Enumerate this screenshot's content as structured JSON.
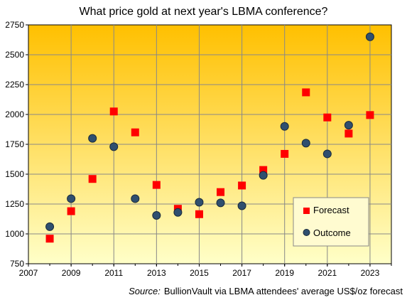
{
  "chart_data": {
    "type": "scatter",
    "title": "What price gold at next year's LBMA conference?",
    "xlabel": "",
    "ylabel": "",
    "xlim": [
      2007,
      2024
    ],
    "ylim": [
      750,
      2750
    ],
    "x_ticks": [
      "2007",
      "2009",
      "2011",
      "2013",
      "2015",
      "2017",
      "2019",
      "2021",
      "2023"
    ],
    "y_ticks": [
      "750",
      "1000",
      "1250",
      "1500",
      "1750",
      "2000",
      "2250",
      "2500",
      "2750"
    ],
    "grid": true,
    "legend_position": "lower-right",
    "series": [
      {
        "name": "Forecast",
        "marker": "square",
        "color": "#ff0000",
        "points": [
          {
            "x": 2008,
            "y": 960
          },
          {
            "x": 2009,
            "y": 1190
          },
          {
            "x": 2010,
            "y": 1460
          },
          {
            "x": 2011,
            "y": 2025
          },
          {
            "x": 2012,
            "y": 1850
          },
          {
            "x": 2013,
            "y": 1410
          },
          {
            "x": 2014,
            "y": 1210
          },
          {
            "x": 2015,
            "y": 1165
          },
          {
            "x": 2016,
            "y": 1350
          },
          {
            "x": 2017,
            "y": 1405
          },
          {
            "x": 2018,
            "y": 1535
          },
          {
            "x": 2019,
            "y": 1670
          },
          {
            "x": 2020,
            "y": 2185
          },
          {
            "x": 2021,
            "y": 1975
          },
          {
            "x": 2022,
            "y": 1840
          },
          {
            "x": 2023,
            "y": 1995
          }
        ]
      },
      {
        "name": "Outcome",
        "marker": "circle",
        "color": "#2f4f6f",
        "points": [
          {
            "x": 2008,
            "y": 1060
          },
          {
            "x": 2009,
            "y": 1295
          },
          {
            "x": 2010,
            "y": 1800
          },
          {
            "x": 2011,
            "y": 1730
          },
          {
            "x": 2012,
            "y": 1295
          },
          {
            "x": 2013,
            "y": 1155
          },
          {
            "x": 2014,
            "y": 1180
          },
          {
            "x": 2015,
            "y": 1265
          },
          {
            "x": 2016,
            "y": 1260
          },
          {
            "x": 2017,
            "y": 1235
          },
          {
            "x": 2018,
            "y": 1490
          },
          {
            "x": 2019,
            "y": 1900
          },
          {
            "x": 2020,
            "y": 1760
          },
          {
            "x": 2021,
            "y": 1670
          },
          {
            "x": 2022,
            "y": 1910
          },
          {
            "x": 2023,
            "y": 2650
          }
        ]
      }
    ],
    "source_prefix": "Source:",
    "source_text": "BullionVault via LBMA attendees' average  US$/oz forecast",
    "colors": {
      "gradient_top": "#ffc000",
      "gradient_bottom": "#ffffc8",
      "grid": "#888888",
      "axis": "#000000"
    }
  }
}
